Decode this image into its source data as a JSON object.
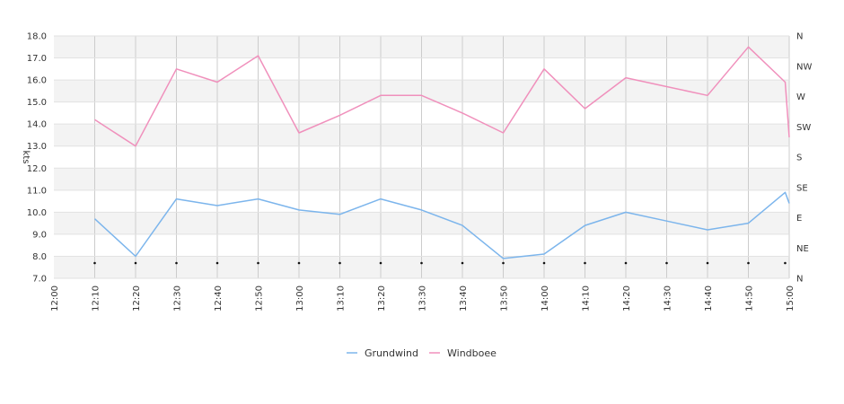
{
  "chart_data": {
    "type": "line",
    "ylabel": "kts",
    "ylim": [
      7.0,
      18.0
    ],
    "y_ticks": [
      "7.0",
      "8.0",
      "9.0",
      "10.0",
      "11.0",
      "12.0",
      "13.0",
      "14.0",
      "15.0",
      "16.0",
      "17.0",
      "18.0"
    ],
    "y2_ticks": [
      "N",
      "NE",
      "E",
      "SE",
      "S",
      "SW",
      "W",
      "NW",
      "N"
    ],
    "x_ticks": [
      "12:00",
      "12:10",
      "12:20",
      "12:30",
      "12:40",
      "12:50",
      "13:00",
      "13:10",
      "13:20",
      "13:30",
      "13:40",
      "13:50",
      "14:00",
      "14:10",
      "14:20",
      "14:30",
      "14:40",
      "14:50",
      "15:00"
    ],
    "x": [
      "12:10",
      "12:20",
      "12:30",
      "12:40",
      "12:50",
      "13:00",
      "13:10",
      "13:20",
      "13:30",
      "13:40",
      "13:50",
      "14:00",
      "14:10",
      "14:20",
      "14:30",
      "14:40",
      "14:50",
      "14:59",
      "15:00"
    ],
    "series": [
      {
        "name": "Grundwind",
        "color": "#7cb5ec",
        "values": [
          9.7,
          8.0,
          10.6,
          10.3,
          10.6,
          10.1,
          9.9,
          10.6,
          10.1,
          9.4,
          7.9,
          8.1,
          9.4,
          10.0,
          9.6,
          9.2,
          9.5,
          10.9,
          10.4
        ]
      },
      {
        "name": "Windboee",
        "color": "#f090bc",
        "values": [
          14.2,
          13.0,
          16.5,
          15.9,
          17.1,
          13.6,
          14.4,
          15.3,
          15.3,
          14.5,
          13.6,
          16.5,
          14.7,
          16.1,
          15.7,
          15.3,
          17.5,
          15.9,
          13.4
        ]
      }
    ],
    "direction_markers_at": [
      "12:10",
      "12:20",
      "12:30",
      "12:40",
      "12:50",
      "13:00",
      "13:10",
      "13:20",
      "13:30",
      "13:40",
      "13:50",
      "14:00",
      "14:10",
      "14:20",
      "14:30",
      "14:40",
      "14:50",
      "14:59"
    ],
    "grid": true,
    "legend_position": "bottom-center"
  }
}
